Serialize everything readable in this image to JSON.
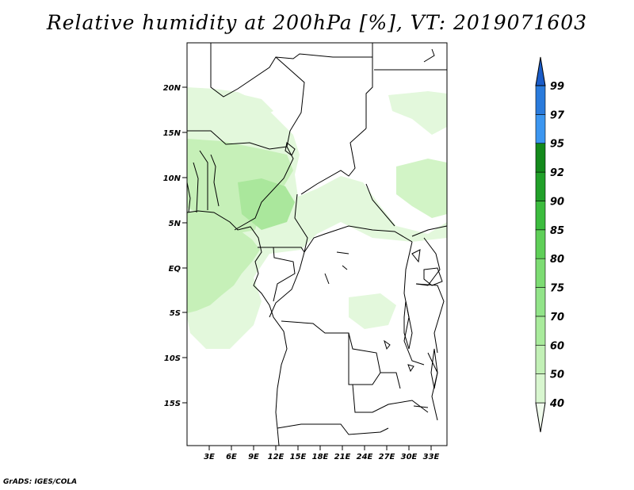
{
  "title": "Relative humidity at 200hPa [%], VT: 2019071603",
  "footer": "GrADS: IGES/COLA",
  "axes": {
    "lat_labels": [
      "20N",
      "15N",
      "10N",
      "5N",
      "EQ",
      "5S",
      "10S",
      "15S"
    ],
    "lon_labels": [
      "3E",
      "6E",
      "9E",
      "12E",
      "15E",
      "18E",
      "21E",
      "24E",
      "27E",
      "30E",
      "33E"
    ]
  },
  "colorbar": {
    "labels": [
      "40",
      "50",
      "60",
      "70",
      "75",
      "80",
      "85",
      "90",
      "92",
      "95",
      "97",
      "99"
    ],
    "colors": [
      "#f0fbec",
      "#d8f6cf",
      "#c2f0b6",
      "#a9eb9c",
      "#92e489",
      "#7ddc73",
      "#5fcf58",
      "#3cbc3e",
      "#21a029",
      "#148a1c",
      "#3c96f0",
      "#2a7bdc",
      "#1a5cc8"
    ]
  },
  "colors": {
    "humidity_light": "#e3f8dc",
    "humidity_mid": "#c6f0b8",
    "humidity_dark": "#aae79c",
    "border": "#000000"
  }
}
